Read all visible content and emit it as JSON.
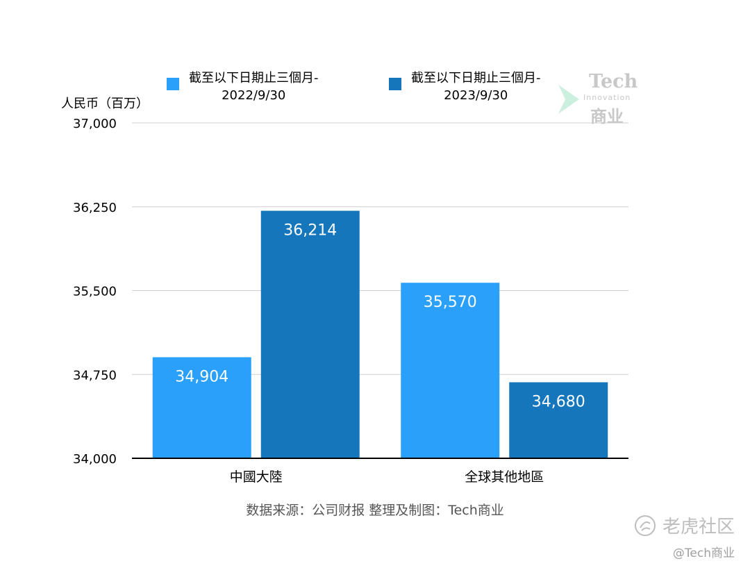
{
  "chart_data": {
    "type": "bar",
    "title": "",
    "ylabel": "人民币（百万）",
    "xlabel": "",
    "categories": [
      "中國大陸",
      "全球其他地區"
    ],
    "series": [
      {
        "name": "截至以下日期止三個月-\n2022/9/30",
        "color": "#2aa0fb",
        "values": [
          34904,
          35570
        ],
        "labels": [
          "34,904",
          "35,570"
        ]
      },
      {
        "name": "截至以下日期止三個月-\n2023/9/30",
        "color": "#1576bc",
        "values": [
          36214,
          34680
        ],
        "labels": [
          "36,214",
          "34,680"
        ]
      }
    ],
    "ylim": [
      34000,
      37000
    ],
    "yticks": [
      34000,
      34750,
      35500,
      36250,
      37000
    ],
    "ytick_labels": [
      "34,000",
      "34,750",
      "35,500",
      "36,250",
      "37,000"
    ],
    "grid": true,
    "legend_position": "top"
  },
  "footer": "数据来源：公司财报 整理及制图：Tech商业",
  "logo": {
    "tech": "Tech",
    "innovation": "Innovation",
    "cn": "商业"
  },
  "watermark": {
    "brand": "老虎社区",
    "handle": "@Tech商业"
  }
}
